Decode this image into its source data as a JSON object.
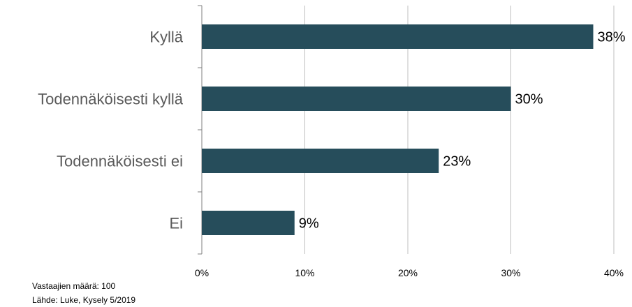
{
  "chart_data": {
    "type": "bar",
    "orientation": "horizontal",
    "categories": [
      "Kyllä",
      "Todennäköisesti kyllä",
      "Todennäköisesti ei",
      "Ei"
    ],
    "values": [
      38,
      30,
      23,
      9
    ],
    "value_labels": [
      "38%",
      "30%",
      "23%",
      "9%"
    ],
    "xlim": [
      0,
      40
    ],
    "x_ticks": [
      0,
      10,
      20,
      30,
      40
    ],
    "x_tick_labels": [
      "0%",
      "10%",
      "20%",
      "30%",
      "40%"
    ],
    "grid": true,
    "bar_color": "#264d5b"
  },
  "footnotes": {
    "respondents": "Vastaajien määrä: 100",
    "source": "Lähde: Luke, Kysely 5/2019"
  }
}
